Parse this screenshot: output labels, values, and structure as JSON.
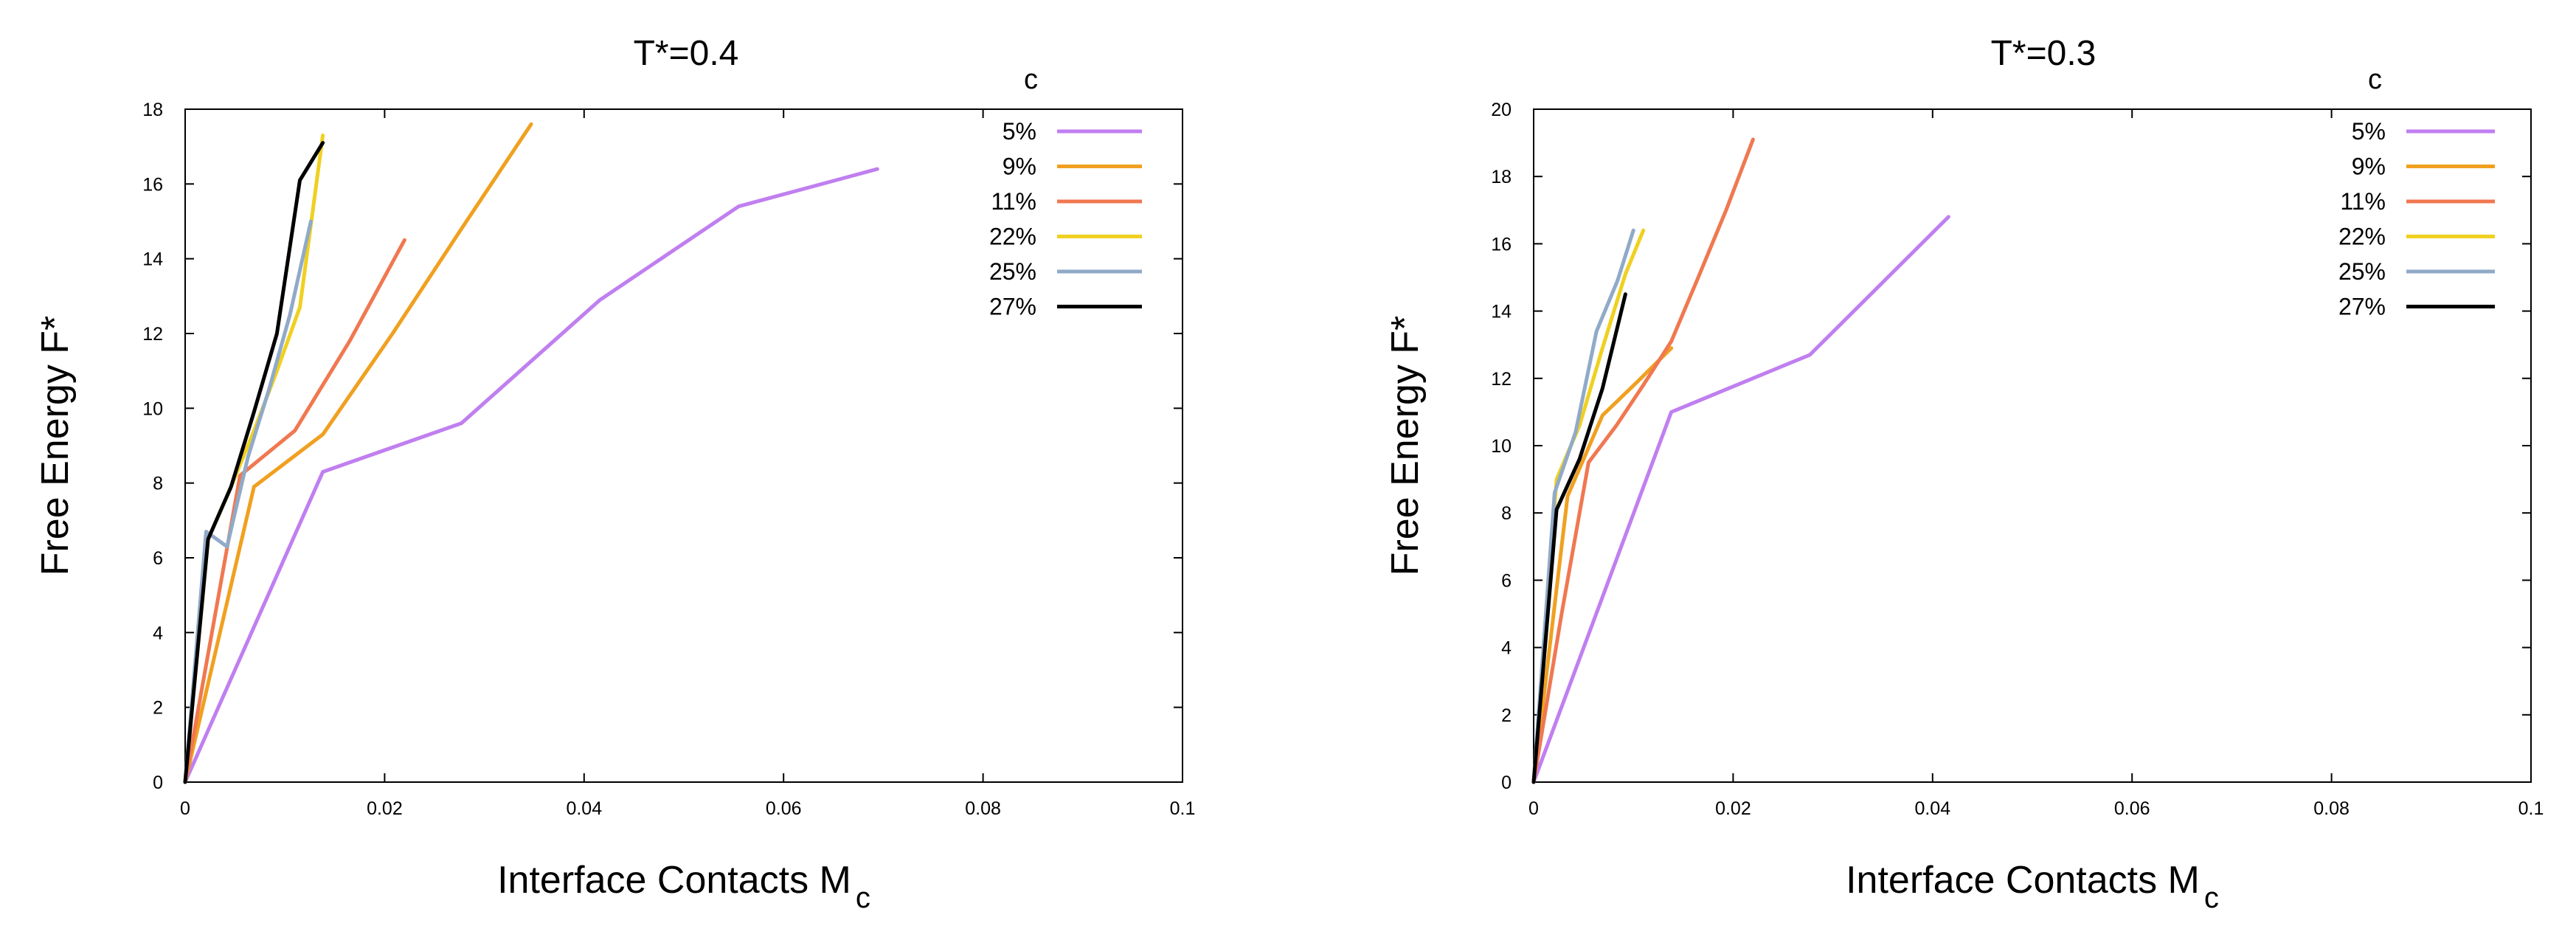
{
  "chart_data": [
    {
      "type": "line",
      "title": "T*=0.4",
      "xlabel": "Interface Contacts M",
      "xlabel_sub": "c",
      "ylabel": "Free Energy F*",
      "xlim": [
        0,
        0.1
      ],
      "ylim": [
        0,
        18
      ],
      "xticks": [
        0,
        0.02,
        0.04,
        0.06,
        0.08,
        0.1
      ],
      "xtick_labels": [
        "0",
        "0.02",
        "0.04",
        "0.06",
        "0.08",
        "0.1"
      ],
      "yticks": [
        0,
        2,
        4,
        6,
        8,
        10,
        12,
        14,
        16,
        18
      ],
      "ytick_labels": [
        "0",
        "2",
        "4",
        "6",
        "8",
        "10",
        "12",
        "14",
        "16",
        "18"
      ],
      "legend_title": "c",
      "series": [
        {
          "name": "5%",
          "color": "#c07ff0",
          "x": [
            0,
            0.0138,
            0.0277,
            0.0416,
            0.0555,
            0.0694
          ],
          "y": [
            0,
            8.3,
            9.6,
            12.9,
            15.4,
            16.4
          ]
        },
        {
          "name": "9%",
          "color": "#f0a020",
          "x": [
            0,
            0.0069,
            0.0138,
            0.0208,
            0.0277,
            0.0347
          ],
          "y": [
            0,
            7.9,
            9.3,
            12.0,
            14.8,
            17.6
          ]
        },
        {
          "name": "11%",
          "color": "#f07850",
          "x": [
            0,
            0.0055,
            0.011,
            0.0165,
            0.022
          ],
          "y": [
            0,
            8.2,
            9.4,
            11.8,
            14.5
          ]
        },
        {
          "name": "22%",
          "color": "#f0d020",
          "x": [
            0,
            0.0023,
            0.0046,
            0.0069,
            0.0092,
            0.0115,
            0.0138
          ],
          "y": [
            0,
            6.5,
            7.9,
            9.4,
            11.0,
            12.7,
            17.3
          ]
        },
        {
          "name": "25%",
          "color": "#90aac8",
          "x": [
            0,
            0.0021,
            0.0042,
            0.0063,
            0.0084,
            0.0105,
            0.0126
          ],
          "y": [
            0,
            6.7,
            6.3,
            8.7,
            10.5,
            12.5,
            15.0
          ]
        },
        {
          "name": "27%",
          "color": "#000000",
          "x": [
            0,
            0.0023,
            0.0046,
            0.0069,
            0.0092,
            0.0115,
            0.0138
          ],
          "y": [
            0,
            6.5,
            7.9,
            9.9,
            12.0,
            16.1,
            17.1
          ]
        }
      ]
    },
    {
      "type": "line",
      "title": "T*=0.3",
      "xlabel": "Interface Contacts M",
      "xlabel_sub": "c",
      "ylabel": "Free Energy F*",
      "xlim": [
        0,
        0.1
      ],
      "ylim": [
        0,
        20
      ],
      "xticks": [
        0,
        0.02,
        0.04,
        0.06,
        0.08,
        0.1
      ],
      "xtick_labels": [
        "0",
        "0.02",
        "0.04",
        "0.06",
        "0.08",
        "0.1"
      ],
      "yticks": [
        0,
        2,
        4,
        6,
        8,
        10,
        12,
        14,
        16,
        18,
        20
      ],
      "ytick_labels": [
        "0",
        "2",
        "4",
        "6",
        "8",
        "10",
        "12",
        "14",
        "16",
        "18",
        "20"
      ],
      "legend_title": "c",
      "series": [
        {
          "name": "5%",
          "color": "#c07ff0",
          "x": [
            0,
            0.0138,
            0.0277,
            0.0416
          ],
          "y": [
            0,
            11.0,
            12.7,
            16.8
          ]
        },
        {
          "name": "9%",
          "color": "#f0a020",
          "x": [
            0,
            0.0034,
            0.0069,
            0.0104,
            0.0138
          ],
          "y": [
            0,
            8.5,
            10.9,
            11.9,
            12.9
          ]
        },
        {
          "name": "11%",
          "color": "#f07850",
          "x": [
            0,
            0.0028,
            0.0055,
            0.0083,
            0.011,
            0.0138,
            0.0165,
            0.0193,
            0.022
          ],
          "y": [
            0,
            5.0,
            9.5,
            10.6,
            11.8,
            13.1,
            15.0,
            17.0,
            19.1
          ]
        },
        {
          "name": "22%",
          "color": "#f0d020",
          "x": [
            0,
            0.0023,
            0.0046,
            0.0069,
            0.0092,
            0.011
          ],
          "y": [
            0,
            9.0,
            10.6,
            12.9,
            15.1,
            16.4
          ]
        },
        {
          "name": "25%",
          "color": "#90aac8",
          "x": [
            0,
            0.0021,
            0.0042,
            0.0063,
            0.0084,
            0.01
          ],
          "y": [
            0,
            8.6,
            10.4,
            13.4,
            14.9,
            16.4
          ]
        },
        {
          "name": "27%",
          "color": "#000000",
          "x": [
            0,
            0.0023,
            0.0046,
            0.0069,
            0.0092
          ],
          "y": [
            0,
            8.1,
            9.6,
            11.7,
            14.5
          ]
        }
      ]
    }
  ]
}
